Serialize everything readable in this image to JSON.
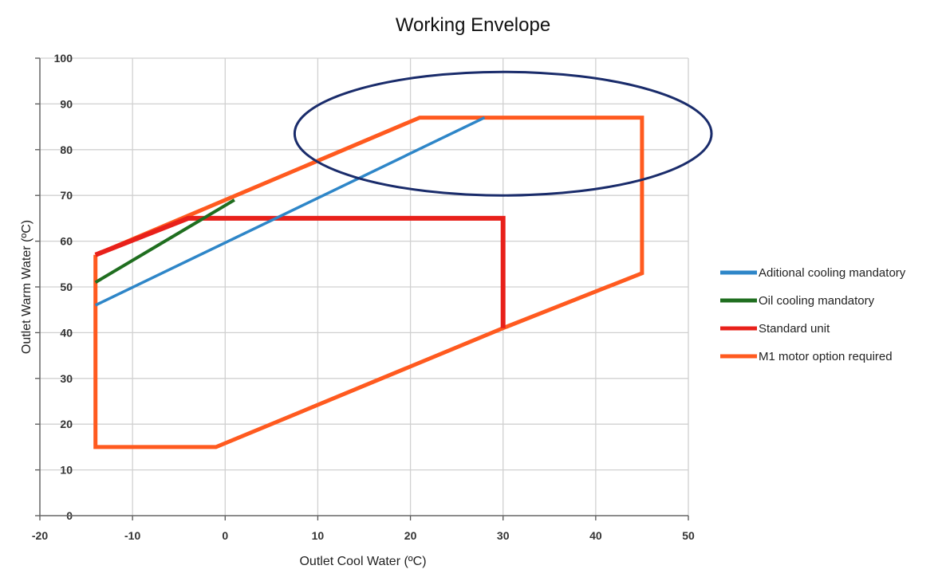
{
  "chart_data": {
    "type": "line",
    "title": "Working Envelope",
    "xlabel": "Outlet Cool Water (ºC)",
    "ylabel": "Outlet Warm  Water (ºC)",
    "xlim": [
      -20,
      50
    ],
    "ylim": [
      0,
      100
    ],
    "x_ticks": [
      -20,
      -10,
      0,
      10,
      20,
      30,
      40,
      50
    ],
    "y_ticks": [
      0,
      10,
      20,
      30,
      40,
      50,
      60,
      70,
      80,
      90,
      100
    ],
    "grid": true,
    "legend_position": "right",
    "series": [
      {
        "name": "Aditional cooling mandatory",
        "color": "#2E86C8",
        "points": [
          [
            -14,
            46
          ],
          [
            28,
            87
          ]
        ]
      },
      {
        "name": "Oil cooling mandatory",
        "color": "#1F6E1F",
        "points": [
          [
            -14,
            51
          ],
          [
            1,
            69
          ]
        ]
      },
      {
        "name": "Standard unit",
        "color": "#E8201A",
        "points": [
          [
            -14,
            57
          ],
          [
            -4,
            65
          ],
          [
            30,
            65
          ],
          [
            30,
            41
          ]
        ]
      },
      {
        "name": "M1 motor option required",
        "color": "#FF5A1F",
        "points": [
          [
            -14,
            57
          ],
          [
            21,
            87
          ],
          [
            45,
            87
          ],
          [
            45,
            53
          ],
          [
            30,
            41
          ],
          [
            -1,
            15
          ],
          [
            -14,
            15
          ],
          [
            -14,
            57
          ]
        ]
      }
    ],
    "annotations": [
      {
        "type": "ellipse",
        "color": "#1A2C6B",
        "center": [
          30,
          83.5
        ],
        "rx": 22.5,
        "ry": 13.5
      }
    ]
  }
}
